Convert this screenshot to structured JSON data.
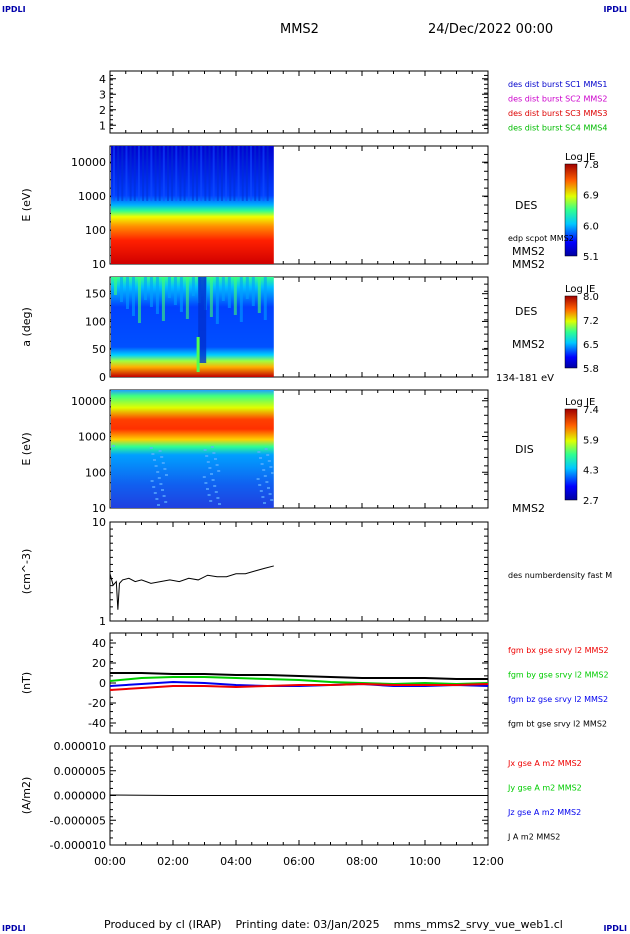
{
  "header": {
    "corner_tl": "IPDLI",
    "corner_tr": "IPDLI",
    "corner_bl": "IPDLI",
    "corner_br": "IPDLI",
    "spacecraft": "MMS2",
    "date": "24/Dec/2022 00:00"
  },
  "footer": {
    "credit": "Produced by cl (IRAP)    Printing date: 03/Jan/2025    mms_mms2_srvy_vue_web1.cl"
  },
  "time_axis": {
    "ticks": [
      "00:00",
      "02:00",
      "04:00",
      "06:00",
      "08:00",
      "10:00",
      "12:00"
    ]
  },
  "colors": {
    "mms1": "#0000cc",
    "mms2": "#cc00cc",
    "mms3": "#dd0000",
    "mms4": "#00bb00",
    "bx": "#ee0000",
    "by": "#00cc00",
    "bz": "#0000ee",
    "bt": "#000000"
  },
  "chart_data": [
    {
      "type": "heatmap",
      "id": "burst",
      "y_ticks": [
        "4",
        "3",
        "2",
        "1"
      ],
      "ylim": [
        0.5,
        4.5
      ],
      "legend": [
        {
          "label": "des dist burst SC1 MMS1",
          "color": "#0000cc"
        },
        {
          "label": "des dist burst SC2 MMS2",
          "color": "#cc00cc"
        },
        {
          "label": "des dist burst SC3 MMS3",
          "color": "#dd0000"
        },
        {
          "label": "des dist burst SC4 MMS4",
          "color": "#00bb00"
        }
      ]
    },
    {
      "type": "heatmap",
      "id": "des_energy",
      "ylabel": "E (eV)",
      "y_scale": "log",
      "ylim": [
        10,
        30000
      ],
      "y_ticks": [
        "10000",
        "1000",
        "100",
        "10"
      ],
      "data_time_range_hours": [
        0,
        5.2
      ],
      "species": "DES",
      "spacecraft": "MMS2",
      "overlay_label": "edp scpot MMS2",
      "colorbar": {
        "title": "Log JE",
        "ticks": [
          "7.8",
          "6.9",
          "6.0",
          "5.1"
        ],
        "range": [
          5.1,
          7.8
        ]
      }
    },
    {
      "type": "heatmap",
      "id": "des_pitch",
      "ylabel": "a (deg)",
      "ylim": [
        0,
        180
      ],
      "y_ticks": [
        "150",
        "100",
        "50",
        "0"
      ],
      "data_time_range_hours": [
        0,
        5.2
      ],
      "species": "DES",
      "spacecraft": "MMS2",
      "energy_range": "134-181 eV",
      "colorbar": {
        "title": "Log JE",
        "ticks": [
          "8.0",
          "7.2",
          "6.5",
          "5.8"
        ],
        "range": [
          5.8,
          8.0
        ]
      }
    },
    {
      "type": "heatmap",
      "id": "dis_energy",
      "ylabel": "E (eV)",
      "y_scale": "log",
      "ylim": [
        10,
        20000
      ],
      "y_ticks": [
        "10000",
        "1000",
        "100",
        "10"
      ],
      "data_time_range_hours": [
        0,
        5.2
      ],
      "species": "DIS",
      "spacecraft": "MMS2",
      "colorbar": {
        "title": "Log JE",
        "ticks": [
          "7.4",
          "5.9",
          "4.3",
          "2.7"
        ],
        "range": [
          2.7,
          7.4
        ]
      }
    },
    {
      "type": "line",
      "id": "density",
      "ylabel": "(cm^-3)",
      "y_scale": "log",
      "ylim": [
        1,
        10
      ],
      "y_ticks": [
        "10",
        "1"
      ],
      "legend": [
        {
          "label": "des numberdensity fast M",
          "color": "#000000"
        }
      ],
      "series": [
        {
          "name": "des numberdensity fast M",
          "x_hours": [
            0.0,
            0.1,
            0.2,
            0.25,
            0.3,
            0.4,
            0.6,
            0.8,
            1.0,
            1.3,
            1.6,
            1.9,
            2.2,
            2.5,
            2.8,
            3.1,
            3.4,
            3.7,
            4.0,
            4.3,
            4.6,
            4.9,
            5.2
          ],
          "values": [
            3.0,
            2.3,
            2.5,
            1.3,
            2.4,
            2.6,
            2.7,
            2.5,
            2.6,
            2.4,
            2.5,
            2.6,
            2.5,
            2.7,
            2.6,
            2.9,
            2.8,
            2.8,
            3.0,
            3.0,
            3.2,
            3.4,
            3.6
          ]
        }
      ]
    },
    {
      "type": "line",
      "id": "magnetic_field",
      "ylabel": "(nT)",
      "ylim": [
        -50,
        50
      ],
      "y_ticks": [
        "40",
        "20",
        "0",
        "-20",
        "-40"
      ],
      "legend": [
        {
          "label": "fgm bx gse srvy l2 MMS2",
          "color": "#ee0000"
        },
        {
          "label": "fgm by gse srvy l2 MMS2",
          "color": "#00cc00"
        },
        {
          "label": "fgm bz gse srvy l2 MMS2",
          "color": "#0000ee"
        },
        {
          "label": "fgm bt gse srvy l2 MMS2",
          "color": "#000000"
        }
      ],
      "series": [
        {
          "name": "fgm bt gse srvy l2 MMS2",
          "x_hours": [
            0,
            1,
            2,
            3,
            4,
            5,
            6,
            7,
            8,
            9,
            10,
            11,
            12
          ],
          "values": [
            10,
            10,
            9,
            9,
            8,
            8,
            7,
            6,
            5,
            5,
            5,
            4,
            4
          ]
        },
        {
          "name": "fgm by gse srvy l2 MMS2",
          "x_hours": [
            0,
            1,
            2,
            3,
            4,
            5,
            6,
            7,
            8,
            9,
            10,
            11,
            12
          ],
          "values": [
            2,
            5,
            6,
            6,
            5,
            4,
            3,
            1,
            0,
            -1,
            0,
            -1,
            0
          ]
        },
        {
          "name": "fgm bz gse srvy l2 MMS2",
          "x_hours": [
            0,
            1,
            2,
            3,
            4,
            5,
            6,
            7,
            8,
            9,
            10,
            11,
            12
          ],
          "values": [
            -3,
            -1,
            1,
            0,
            -2,
            -3,
            -3,
            -2,
            -1,
            -3,
            -3,
            -2,
            -3
          ]
        },
        {
          "name": "fgm bx gse srvy l2 MMS2",
          "x_hours": [
            0,
            1,
            2,
            3,
            4,
            5,
            6,
            7,
            8,
            9,
            10,
            11,
            12
          ],
          "values": [
            -7,
            -5,
            -3,
            -3,
            -4,
            -3,
            -2,
            -2,
            -1,
            -2,
            -2,
            -2,
            -1
          ]
        }
      ]
    },
    {
      "type": "line",
      "id": "current_density",
      "ylabel": "(A/m2)",
      "ylim": [
        -1e-05,
        1e-05
      ],
      "y_ticks": [
        "0.000010",
        "0.000005",
        "0.000000",
        "-0.000005",
        "-0.000010"
      ],
      "legend": [
        {
          "label": "Jx gse A m2 MMS2",
          "color": "#ee0000"
        },
        {
          "label": "Jy gse A m2 MMS2",
          "color": "#00cc00"
        },
        {
          "label": "Jz gse A m2 MMS2",
          "color": "#0000ee"
        },
        {
          "label": "J A m2 MMS2",
          "color": "#000000"
        }
      ],
      "series": [
        {
          "name": "J A m2 MMS2",
          "x_hours": [
            0,
            2,
            4,
            6,
            8,
            10,
            12
          ],
          "values": [
            1e-07,
            0.0,
            0.0,
            0.0,
            0.0,
            0.0,
            0.0
          ]
        }
      ]
    }
  ]
}
